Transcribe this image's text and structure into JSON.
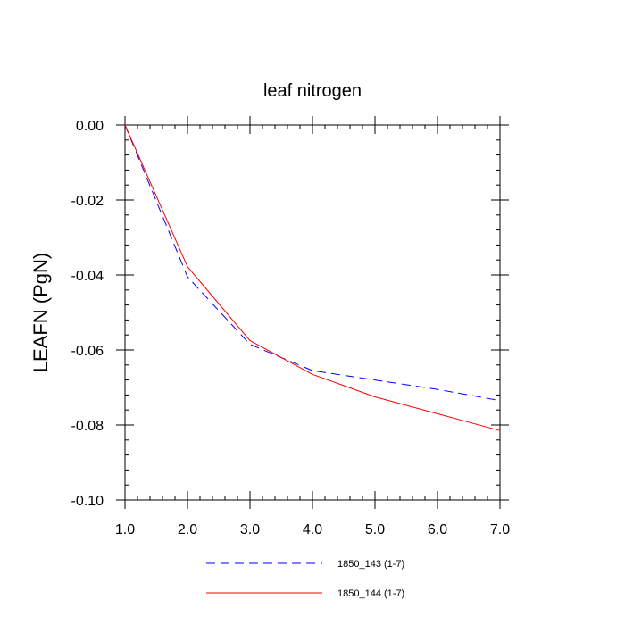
{
  "chart_data": {
    "type": "line",
    "title": "leaf nitrogen",
    "xlabel": "",
    "ylabel": "LEAFN  (PgN)",
    "xlim": [
      1.0,
      7.0
    ],
    "ylim": [
      -0.1,
      0.0
    ],
    "x_ticks": [
      1.0,
      2.0,
      3.0,
      4.0,
      5.0,
      6.0,
      7.0
    ],
    "x_tick_labels": [
      "1.0",
      "2.0",
      "3.0",
      "4.0",
      "5.0",
      "6.0",
      "7.0"
    ],
    "y_ticks": [
      0.0,
      -0.02,
      -0.04,
      -0.06,
      -0.08,
      -0.1
    ],
    "y_tick_labels": [
      "0.00",
      "-0.02",
      "-0.04",
      "-0.06",
      "-0.08",
      "-0.10"
    ],
    "grid": false,
    "legend_position": "bottom",
    "x": [
      1,
      2,
      3,
      4,
      5,
      6,
      7
    ],
    "series": [
      {
        "name": "1850_143 (1-7)",
        "color": "#0000ff",
        "dash": "dashed",
        "values": [
          0.0,
          -0.0405,
          -0.0585,
          -0.0655,
          -0.068,
          -0.0705,
          -0.0735
        ]
      },
      {
        "name": "1850_144 (1-7)",
        "color": "#ff0000",
        "dash": "solid",
        "values": [
          0.0,
          -0.0378,
          -0.0575,
          -0.0665,
          -0.0725,
          -0.077,
          -0.0815
        ]
      }
    ]
  }
}
